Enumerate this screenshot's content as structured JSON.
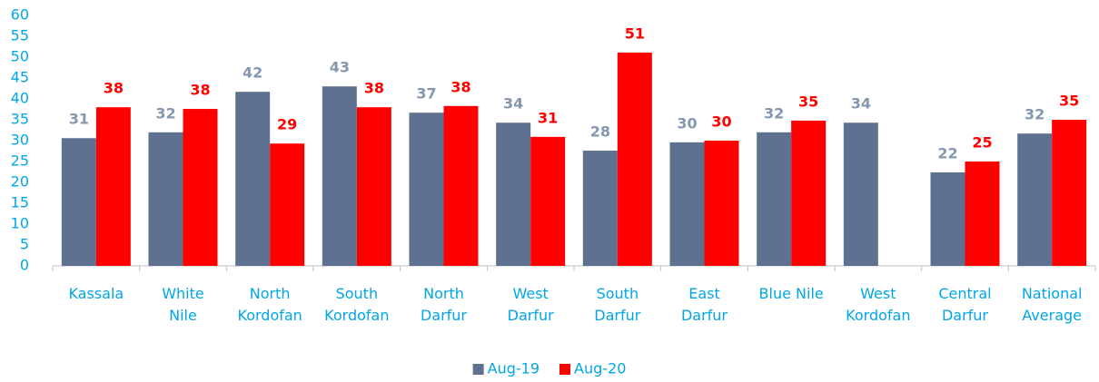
{
  "chart_data": {
    "type": "bar",
    "categories": [
      "Kassala",
      "White\nNile",
      "North\nKordofan",
      "South\nKordofan",
      "North\nDarfur",
      "West\nDarfur",
      "South\nDarfur",
      "East\nDarfur",
      "Blue Nile",
      "West\nKordofan",
      "Central\nDarfur",
      "National\nAverage"
    ],
    "series": [
      {
        "name": "Aug-19",
        "color": "#5f7191",
        "label_color": "#8497b0",
        "values": [
          30.6,
          32.0,
          41.7,
          43.0,
          36.7,
          34.3,
          27.6,
          29.6,
          32.0,
          34.3,
          22.4,
          31.7
        ],
        "value_labels": [
          "31",
          "32",
          "42",
          "43",
          "37",
          "34",
          "28",
          "30",
          "32",
          "34",
          "22",
          "32"
        ]
      },
      {
        "name": "Aug-20",
        "color": "#ff0000",
        "label_color": "#ff0000",
        "values": [
          38.0,
          37.6,
          29.3,
          38.0,
          38.3,
          30.9,
          51.1,
          30.0,
          34.8,
          null,
          25.0,
          35.0
        ],
        "value_labels": [
          "38",
          "38",
          "29",
          "38",
          "38",
          "31",
          "51",
          "30",
          "35",
          null,
          "25",
          "35"
        ]
      }
    ],
    "ylim": [
      0,
      60
    ],
    "yticks": [
      0,
      5,
      10,
      15,
      20,
      25,
      30,
      35,
      40,
      45,
      50,
      55,
      60
    ],
    "grid": false,
    "legend": "bottom"
  }
}
